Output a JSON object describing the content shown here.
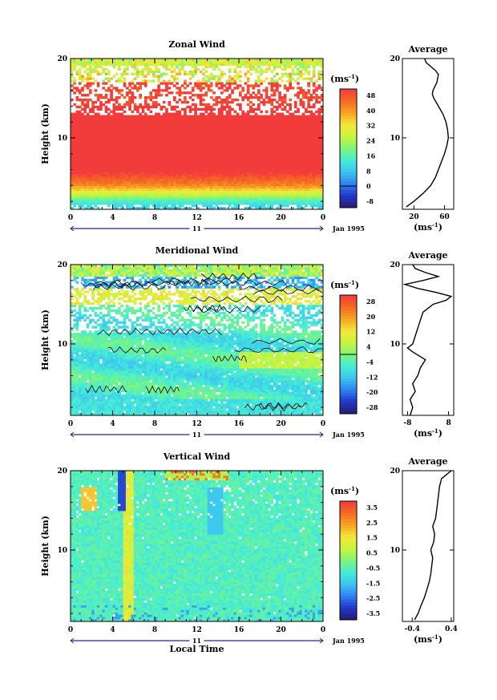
{
  "chart_data": [
    {
      "type": "heatmap",
      "title": "Zonal Wind",
      "ylabel": "Height (km)",
      "x_ticks": [
        "0",
        "4",
        "8",
        "12",
        "16",
        "20",
        "0"
      ],
      "y_ticks": [
        "20",
        "10"
      ],
      "xlim": [
        0,
        24
      ],
      "ylim": [
        1,
        20
      ],
      "date_label": "11",
      "date_suffix": "Jan 1995",
      "colorbar": {
        "unit": "(ms",
        "unit_sup": "-1",
        "unit_close": ")",
        "tick_labels": [
          "48",
          "40",
          "32",
          "24",
          "16",
          "8",
          "0",
          "-8"
        ],
        "range": [
          -12,
          52
        ]
      },
      "average_profile": {
        "title": "Average",
        "xlabel": "(ms",
        "xlabel_sup": "-1",
        "xlabel_close": ")",
        "x_ticks": [
          "20",
          "60"
        ],
        "y_ticks": [
          "20",
          "10"
        ],
        "xlim": [
          5,
          72
        ],
        "heights": [
          1.3,
          2,
          3,
          4,
          5,
          6,
          7,
          8,
          9,
          10,
          11,
          12,
          13,
          14,
          15,
          15.5,
          16,
          17,
          18,
          18.5,
          19,
          19.5,
          20
        ],
        "values": [
          10,
          20,
          32,
          42,
          48,
          52,
          56,
          60,
          63,
          65,
          64,
          62,
          58,
          52,
          46,
          44,
          45,
          50,
          52,
          48,
          42,
          36,
          34
        ]
      }
    },
    {
      "type": "heatmap",
      "title": "Meridional Wind",
      "ylabel": "Height (km)",
      "x_ticks": [
        "0",
        "4",
        "8",
        "12",
        "16",
        "20",
        "0"
      ],
      "y_ticks": [
        "20",
        "10"
      ],
      "xlim": [
        0,
        24
      ],
      "ylim": [
        1,
        20
      ],
      "date_label": "11",
      "date_suffix": "Jan 1995",
      "colorbar": {
        "unit": "(ms",
        "unit_sup": "-1",
        "unit_close": ")",
        "tick_labels": [
          "28",
          "20",
          "12",
          "4",
          "-4",
          "-12",
          "-20",
          "-28"
        ],
        "range": [
          -32,
          32
        ]
      },
      "average_profile": {
        "title": "Average",
        "xlabel": "(ms",
        "xlabel_sup": "-1",
        "xlabel_close": ")",
        "x_ticks": [
          "-8",
          "8"
        ],
        "y_ticks": [
          "20",
          "10"
        ],
        "xlim": [
          -10,
          10
        ],
        "heights": [
          1,
          2,
          3,
          4,
          5,
          6,
          7,
          8,
          9,
          9.5,
          10,
          11,
          12,
          13,
          14,
          15,
          15.5,
          16,
          16.5,
          17,
          17.5,
          18,
          18.5,
          19,
          19.5,
          20
        ],
        "values": [
          -7,
          -6,
          -7,
          -5,
          -6,
          -4,
          -3,
          -1,
          -6,
          -8,
          -6,
          -5,
          -4,
          -3,
          -2,
          2,
          7,
          9,
          3,
          -4,
          -9,
          -2,
          4,
          -1,
          -5,
          -6
        ]
      }
    },
    {
      "type": "heatmap",
      "title": "Vertical Wind",
      "ylabel": "Height (km)",
      "xlabel": "Local Time",
      "x_ticks": [
        "0",
        "4",
        "8",
        "12",
        "16",
        "20",
        "0"
      ],
      "y_ticks": [
        "20",
        "10"
      ],
      "xlim": [
        0,
        24
      ],
      "ylim": [
        1,
        20
      ],
      "date_label": "11",
      "date_suffix": "Jan 1995",
      "colorbar": {
        "unit": "(ms",
        "unit_sup": "-1",
        "unit_close": ")",
        "tick_labels": [
          "3.5",
          "2.5",
          "1.5",
          "0.5",
          "-0.5",
          "-1.5",
          "-2.5",
          "-3.5"
        ],
        "range": [
          -4,
          4
        ]
      },
      "average_profile": {
        "title": "Average",
        "xlabel": "(ms",
        "xlabel_sup": "-1",
        "xlabel_close": ")",
        "x_ticks": [
          "-0.4",
          "0.4"
        ],
        "y_ticks": [
          "20",
          "10"
        ],
        "xlim": [
          -0.6,
          0.45
        ],
        "heights": [
          1.2,
          2,
          3,
          4,
          5,
          6,
          7,
          8,
          9,
          10,
          11,
          12,
          13,
          14,
          15,
          16,
          17,
          18,
          19,
          19.5,
          20
        ],
        "values": [
          -0.35,
          -0.28,
          -0.22,
          -0.15,
          -0.1,
          -0.05,
          -0.02,
          0.0,
          0.02,
          -0.02,
          0.04,
          0.06,
          0.02,
          0.08,
          0.1,
          0.12,
          0.14,
          0.16,
          0.2,
          0.3,
          0.4
        ]
      }
    }
  ]
}
